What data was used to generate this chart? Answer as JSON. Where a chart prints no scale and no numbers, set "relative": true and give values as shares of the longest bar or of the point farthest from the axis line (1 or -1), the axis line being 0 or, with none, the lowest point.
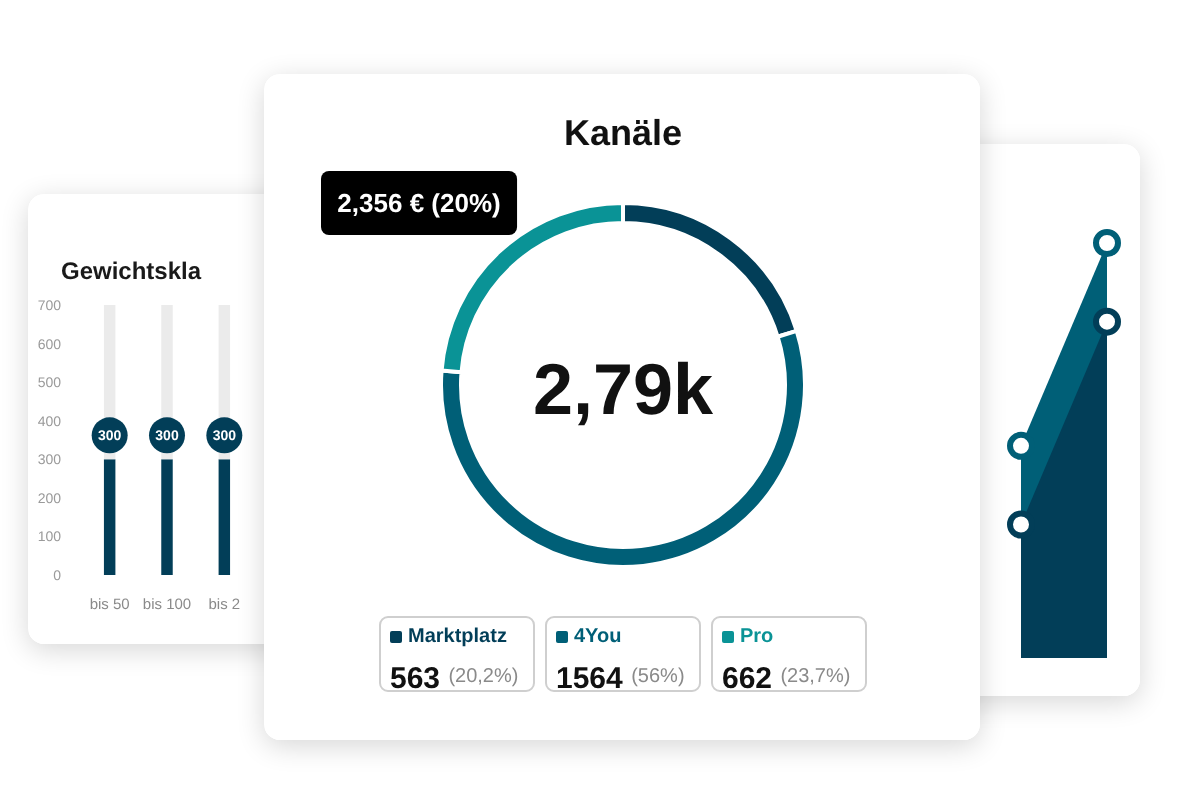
{
  "chart_data": [
    {
      "type": "bar",
      "title": "Gewichtskla",
      "categories": [
        "bis 50",
        "bis 100",
        "bis 2"
      ],
      "stacked": true,
      "series": [
        {
          "color": "#023e58",
          "values": [
            300,
            300,
            300
          ],
          "value_labels": [
            "300",
            "300",
            "300"
          ]
        },
        {
          "color": "#ebebeb",
          "values": [
            400,
            400,
            400
          ]
        }
      ],
      "ylim": [
        0,
        700
      ],
      "yticks": [
        0,
        100,
        200,
        300,
        400,
        500,
        600,
        700
      ]
    },
    {
      "type": "donut",
      "title": "Kanäle",
      "categories": [
        "Marktplatz",
        "4You",
        "Pro"
      ],
      "values": [
        563,
        1564,
        662
      ],
      "colors": [
        "#023e58",
        "#005f77",
        "#0a9396"
      ],
      "value_labels": [
        "563 (20,2%)",
        "1564 (56%)",
        "662 (23,7%)"
      ],
      "legend": "bottom",
      "annotations": [
        "2,79k",
        "2,356 € (20%)"
      ]
    },
    {
      "type": "area",
      "relative": true,
      "categories": [
        null,
        null
      ],
      "series": [
        {
          "color": "#005f77",
          "values": [
            0.51,
            1
          ]
        },
        {
          "color": "#023e58",
          "values": [
            0.32,
            0.81
          ]
        }
      ],
      "marker": "circle"
    }
  ]
}
